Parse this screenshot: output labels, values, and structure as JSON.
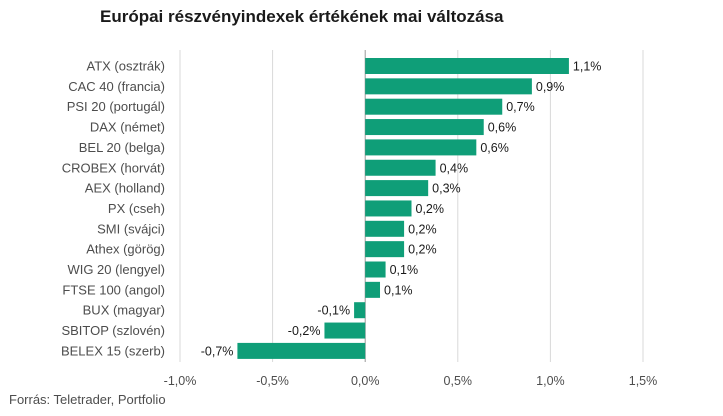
{
  "title": "Európai részvényindexek értékének mai változása",
  "source": "Forrás: Teletrader, Portfolio",
  "colors": {
    "bar": "#0f9e78",
    "grid": "#d9d9d9",
    "zero_line": "#999999"
  },
  "chart_data": {
    "type": "bar",
    "orientation": "horizontal",
    "title": "Európai részvényindexek értékének mai változása",
    "xlabel": "",
    "ylabel": "",
    "categories": [
      "ATX (osztrák)",
      "CAC 40 (francia)",
      "PSI 20 (portugál)",
      "DAX (német)",
      "BEL 20 (belga)",
      "CROBEX (horvát)",
      "AEX (holland)",
      "PX (cseh)",
      "SMI (svájci)",
      "Athex (görög)",
      "WIG 20 (lengyel)",
      "FTSE 100 (angol)",
      "BUX (magyar)",
      "SBITOP (szlovén)",
      "BELEX 15 (szerb)"
    ],
    "values": [
      1.1,
      0.9,
      0.74,
      0.64,
      0.6,
      0.38,
      0.34,
      0.25,
      0.21,
      0.21,
      0.11,
      0.08,
      -0.06,
      -0.22,
      -0.69
    ],
    "value_labels": [
      "1,1%",
      "0,9%",
      "0,7%",
      "0,6%",
      "0,6%",
      "0,4%",
      "0,3%",
      "0,2%",
      "0,2%",
      "0,2%",
      "0,1%",
      "0,1%",
      "-0,1%",
      "-0,2%",
      "-0,7%"
    ],
    "xlim": [
      -1.0,
      1.5
    ],
    "xticks": [
      -1.0,
      -0.5,
      0.0,
      0.5,
      1.0,
      1.5
    ],
    "xtick_labels": [
      "-1,0%",
      "-0,5%",
      "0,0%",
      "0,5%",
      "1,0%",
      "1,5%"
    ],
    "grid": true
  }
}
